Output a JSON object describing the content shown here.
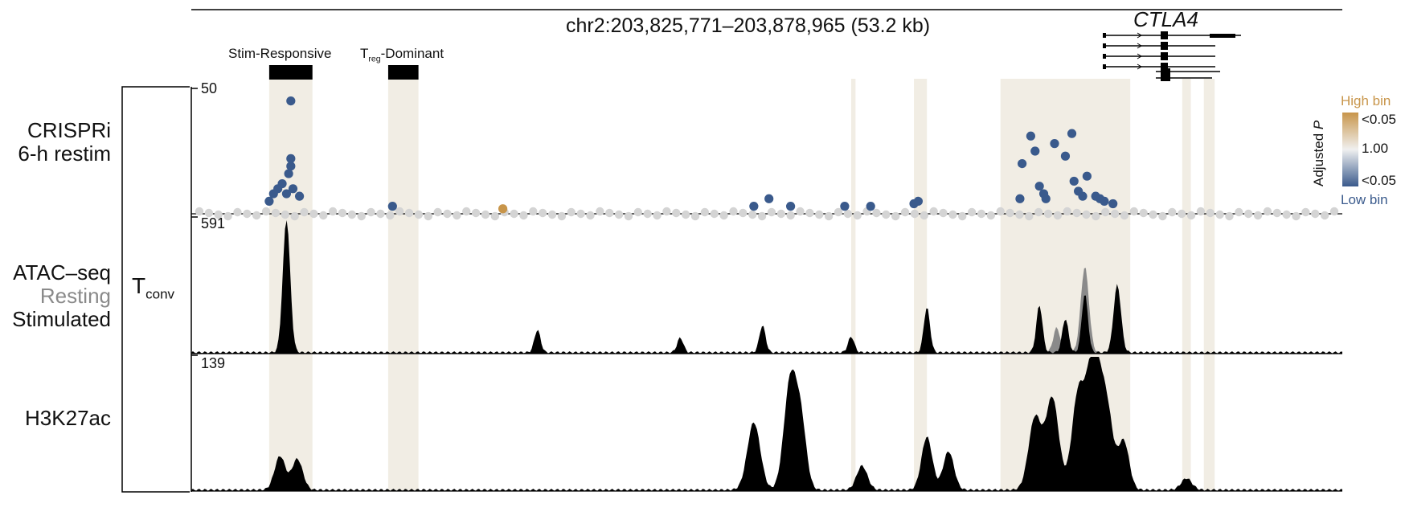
{
  "locus": "chr2:203,825,771–203,878,965 (53.2 kb)",
  "gene": "CTLA4",
  "regions": {
    "stim_responsive": "Stim-Responsive",
    "treg_prefix": "T",
    "treg_sub": "reg",
    "treg_suffix": "-Dominant"
  },
  "tracks": {
    "crispri_line1": "CRISPRi",
    "crispri_line2": "6-h restim",
    "crispri_max": "50",
    "atac_line1": "ATAC–seq",
    "atac_line2": "Resting",
    "atac_line3": "Stimulated",
    "atac_max": "591",
    "h3k27ac": "H3K27ac",
    "h3k27ac_max": "139"
  },
  "cell_type": {
    "main": "T",
    "sub": "conv"
  },
  "legend": {
    "title": "Adjusted",
    "title_italic": "P",
    "high_bin": "High bin",
    "low_bin": "Low bin",
    "top_tick": "<0.05",
    "mid_tick": "1.00",
    "bottom_tick": "<0.05"
  },
  "colors": {
    "highlight": "#f1ede4",
    "low_bin": "#3a5a8c",
    "high_bin": "#c8954a",
    "neutral_dot": "#d4d4d4",
    "atac_resting": "#8a8a8a",
    "signal": "#000000"
  },
  "chart_data": {
    "type": "area",
    "x_range_kb": [
      0,
      53.2
    ],
    "highlight_regions_kb": [
      [
        3.6,
        5.6
      ],
      [
        9.1,
        10.5
      ],
      [
        30.5,
        30.7
      ],
      [
        33.4,
        34.0
      ],
      [
        37.4,
        43.4
      ],
      [
        45.8,
        46.2
      ],
      [
        46.8,
        47.3
      ]
    ],
    "crispri": {
      "ylim": [
        0,
        50
      ],
      "significant_low_points": [
        {
          "x_kb": 4.6,
          "y": 45
        },
        {
          "x_kb": 4.6,
          "y": 22
        },
        {
          "x_kb": 4.6,
          "y": 19
        },
        {
          "x_kb": 4.5,
          "y": 16
        },
        {
          "x_kb": 4.2,
          "y": 12
        },
        {
          "x_kb": 4.0,
          "y": 10
        },
        {
          "x_kb": 4.7,
          "y": 10
        },
        {
          "x_kb": 3.8,
          "y": 8
        },
        {
          "x_kb": 4.4,
          "y": 8
        },
        {
          "x_kb": 5.0,
          "y": 7
        },
        {
          "x_kb": 3.6,
          "y": 5
        },
        {
          "x_kb": 9.3,
          "y": 3
        },
        {
          "x_kb": 26.0,
          "y": 3
        },
        {
          "x_kb": 26.7,
          "y": 6
        },
        {
          "x_kb": 27.7,
          "y": 3
        },
        {
          "x_kb": 30.2,
          "y": 3
        },
        {
          "x_kb": 31.4,
          "y": 3
        },
        {
          "x_kb": 33.4,
          "y": 4
        },
        {
          "x_kb": 33.6,
          "y": 5
        },
        {
          "x_kb": 38.3,
          "y": 6
        },
        {
          "x_kb": 38.4,
          "y": 20
        },
        {
          "x_kb": 38.8,
          "y": 31
        },
        {
          "x_kb": 39.0,
          "y": 25
        },
        {
          "x_kb": 39.2,
          "y": 11
        },
        {
          "x_kb": 39.4,
          "y": 8
        },
        {
          "x_kb": 39.5,
          "y": 6
        },
        {
          "x_kb": 39.9,
          "y": 28
        },
        {
          "x_kb": 40.4,
          "y": 23
        },
        {
          "x_kb": 40.7,
          "y": 32
        },
        {
          "x_kb": 40.8,
          "y": 13
        },
        {
          "x_kb": 41.0,
          "y": 9
        },
        {
          "x_kb": 41.2,
          "y": 7
        },
        {
          "x_kb": 41.4,
          "y": 15
        },
        {
          "x_kb": 41.8,
          "y": 7
        },
        {
          "x_kb": 42.0,
          "y": 6
        },
        {
          "x_kb": 42.2,
          "y": 5
        },
        {
          "x_kb": 42.6,
          "y": 4
        }
      ],
      "significant_high_points": [
        {
          "x_kb": 14.4,
          "y": 2
        }
      ]
    },
    "atac_seq": {
      "ylim": [
        0,
        591
      ],
      "series": [
        {
          "name": "Stimulated",
          "peaks": [
            {
              "x_kb": 4.4,
              "y": 591
            },
            {
              "x_kb": 16.0,
              "y": 100
            },
            {
              "x_kb": 22.6,
              "y": 65
            },
            {
              "x_kb": 26.4,
              "y": 120
            },
            {
              "x_kb": 30.5,
              "y": 70
            },
            {
              "x_kb": 34.0,
              "y": 200
            },
            {
              "x_kb": 39.2,
              "y": 210
            },
            {
              "x_kb": 40.4,
              "y": 150
            },
            {
              "x_kb": 41.3,
              "y": 260
            },
            {
              "x_kb": 42.8,
              "y": 300
            }
          ]
        },
        {
          "name": "Resting",
          "peaks": [
            {
              "x_kb": 41.3,
              "y": 380
            },
            {
              "x_kb": 40.0,
              "y": 110
            }
          ]
        }
      ]
    },
    "h3k27ac": {
      "ylim": [
        0,
        139
      ],
      "peaks": [
        {
          "x_kb": 4.1,
          "y": 35
        },
        {
          "x_kb": 4.9,
          "y": 32
        },
        {
          "x_kb": 26.0,
          "y": 70
        },
        {
          "x_kb": 27.7,
          "y": 115
        },
        {
          "x_kb": 28.2,
          "y": 60
        },
        {
          "x_kb": 31.0,
          "y": 25
        },
        {
          "x_kb": 34.0,
          "y": 55
        },
        {
          "x_kb": 35.0,
          "y": 40
        },
        {
          "x_kb": 39.0,
          "y": 75
        },
        {
          "x_kb": 39.8,
          "y": 95
        },
        {
          "x_kb": 41.0,
          "y": 100
        },
        {
          "x_kb": 41.7,
          "y": 139
        },
        {
          "x_kb": 42.3,
          "y": 85
        },
        {
          "x_kb": 43.1,
          "y": 50
        },
        {
          "x_kb": 46.0,
          "y": 12
        }
      ]
    }
  }
}
